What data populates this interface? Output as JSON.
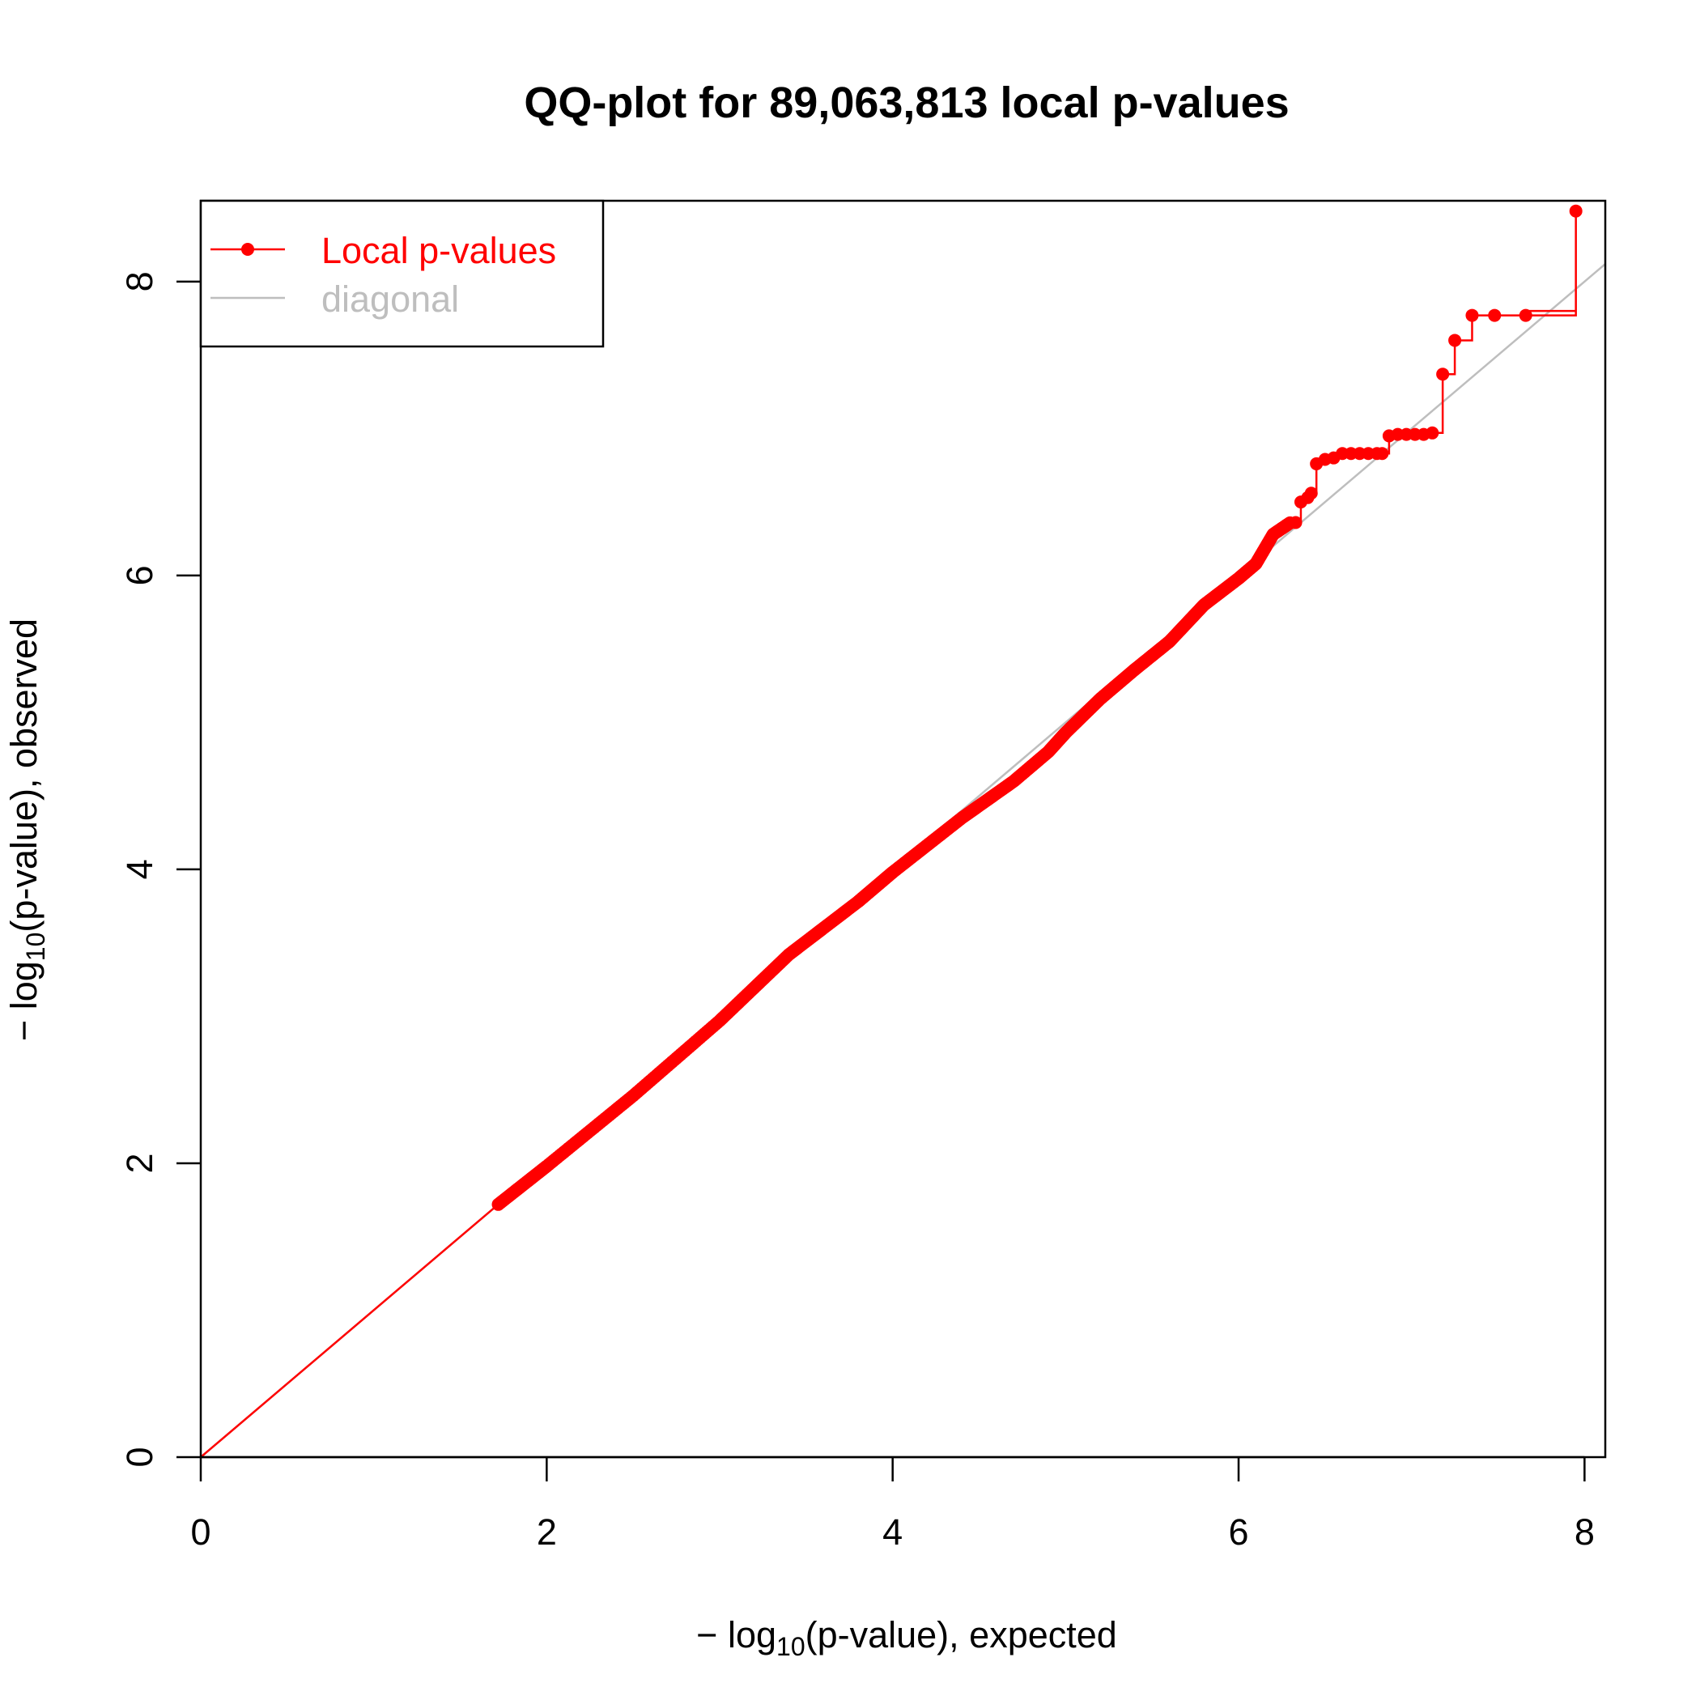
{
  "chart_data": {
    "type": "scatter",
    "title": "QQ-plot for 89,063,813 local p-values",
    "xlabel": {
      "prefix": "− log",
      "sub": "10",
      "suffix": "(p-value), expected"
    },
    "ylabel": {
      "prefix": "− log",
      "sub": "10",
      "suffix": "(p-value), observed"
    },
    "xlim": [
      0,
      8.12
    ],
    "ylim": [
      0,
      8.55
    ],
    "x_ticks": [
      0,
      2,
      4,
      6,
      8
    ],
    "y_ticks": [
      0,
      2,
      4,
      6,
      8
    ],
    "x_tick_labels": [
      "0",
      "2",
      "4",
      "6",
      "8"
    ],
    "y_tick_labels": [
      "0",
      "2",
      "4",
      "6",
      "8"
    ],
    "grid": false,
    "legend": {
      "position": "top-left",
      "entries": [
        {
          "label": "Local p-values",
          "color": "#ff0000",
          "marker": "point-line"
        },
        {
          "label": "diagonal",
          "color": "#bebebe",
          "marker": "line"
        }
      ]
    },
    "diagonal": {
      "from": [
        0,
        0
      ],
      "to": [
        8.12,
        8.12
      ],
      "color": "#bebebe"
    },
    "series": [
      {
        "name": "Local p-values",
        "color": "#ff0000",
        "dense_segment": {
          "x": [
            1.72,
            2.0,
            2.5,
            3.0,
            3.4,
            3.8,
            4.0,
            4.4,
            4.7,
            4.9,
            5.0,
            5.2,
            5.4,
            5.6,
            5.8,
            6.0,
            6.1,
            6.2,
            6.3
          ],
          "y": [
            1.72,
            1.98,
            2.46,
            2.97,
            3.42,
            3.78,
            3.98,
            4.35,
            4.6,
            4.8,
            4.93,
            5.16,
            5.36,
            5.55,
            5.8,
            5.98,
            6.08,
            6.28,
            6.36
          ]
        },
        "tail_points": {
          "x": [
            6.33,
            6.36,
            6.4,
            6.42,
            6.45,
            6.5,
            6.55,
            6.6,
            6.65,
            6.7,
            6.75,
            6.8,
            6.83,
            6.87,
            6.92,
            6.97,
            7.02,
            7.07,
            7.12,
            7.18,
            7.25,
            7.35,
            7.48,
            7.66,
            7.95
          ],
          "y": [
            6.36,
            6.5,
            6.53,
            6.56,
            6.76,
            6.79,
            6.8,
            6.83,
            6.83,
            6.83,
            6.83,
            6.83,
            6.83,
            6.95,
            6.96,
            6.96,
            6.96,
            6.96,
            6.97,
            7.37,
            7.6,
            7.77,
            7.77,
            7.77,
            8.48
          ]
        },
        "line_start": [
          0,
          0
        ],
        "line_end_extra": [
          7.95,
          7.8
        ]
      }
    ]
  }
}
